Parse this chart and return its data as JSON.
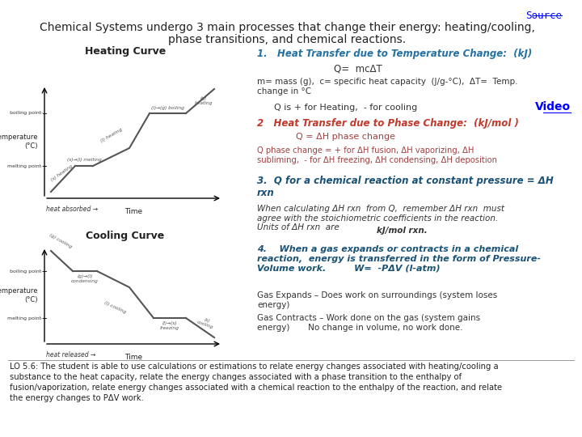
{
  "title_line1": "Chemical Systems undergo 3 main processes that change their energy: heating/cooling,",
  "title_line2": "phase transitions, and chemical reactions.",
  "source_text": "Source",
  "video_text": "Video",
  "background_color": "#ffffff",
  "text_color_dark": "#333333",
  "heading_color1": "#2471a3",
  "heading_color2": "#c0392b",
  "heading_color3": "#1a5276",
  "lo_text": "LO 5.6: The student is able to use calculations or estimations to relate energy changes associated with heating/cooling a\nsubstance to the heat capacity, relate the energy changes associated with a phase transition to the enthalpy of\nfusion/vaporization, relate energy changes associated with a chemical reaction to the enthalpy of the reaction, and relate\nthe energy changes to PΔV work."
}
